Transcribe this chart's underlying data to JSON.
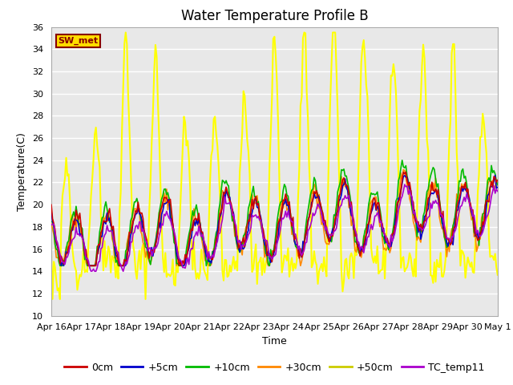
{
  "title": "Water Temperature Profile B",
  "xlabel": "Time",
  "ylabel": "Temperature(C)",
  "ylim": [
    10,
    36
  ],
  "yticks": [
    10,
    12,
    14,
    16,
    18,
    20,
    22,
    24,
    26,
    28,
    30,
    32,
    34,
    36
  ],
  "x_tick_labels": [
    "Apr 16",
    "Apr 17",
    "Apr 18",
    "Apr 19",
    "Apr 20",
    "Apr 21",
    "Apr 22",
    "Apr 23",
    "Apr 24",
    "Apr 25",
    "Apr 26",
    "Apr 27",
    "Apr 28",
    "Apr 29",
    "Apr 30",
    "May 1"
  ],
  "x_tick_positions": [
    0,
    24,
    48,
    72,
    96,
    120,
    144,
    168,
    192,
    216,
    240,
    264,
    288,
    312,
    336,
    360
  ],
  "colors": {
    "0cm": "#cc0000",
    "+5cm": "#0000cc",
    "+10cm": "#00bb00",
    "+30cm": "#ff8800",
    "+50cm": "#ffff00",
    "TC_temp11": "#aa00cc"
  },
  "lw": {
    "0cm": 1.2,
    "+5cm": 1.2,
    "+10cm": 1.2,
    "+30cm": 1.2,
    "+50cm": 1.5,
    "TC_temp11": 1.2
  },
  "annotation_text": "SW_met",
  "annotation_fg": "#880000",
  "annotation_bg": "#ffdd00",
  "fig_bg": "#ffffff",
  "plot_bg": "#e8e8e8",
  "grid_color": "#ffffff",
  "title_fontsize": 12,
  "axis_label_fontsize": 9,
  "tick_fontsize": 8,
  "legend_fontsize": 9,
  "legend_color_50cm": "#cccc00"
}
